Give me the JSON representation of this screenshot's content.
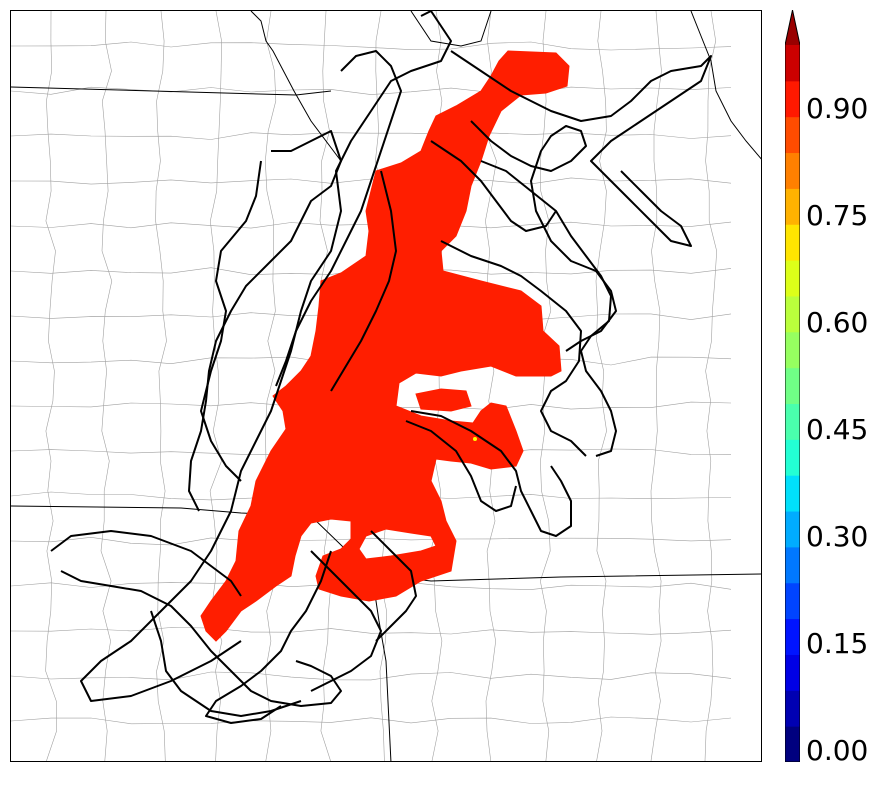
{
  "colorbar": {
    "min": 0.0,
    "max": 1.0,
    "extend": "max",
    "ticks": [
      "0.00",
      "0.15",
      "0.30",
      "0.45",
      "0.60",
      "0.75",
      "0.90"
    ],
    "tick_values": [
      0.0,
      0.15,
      0.3,
      0.45,
      0.6,
      0.75,
      0.9
    ],
    "levels": 20,
    "colormap": "jet",
    "colors": [
      "#00007f",
      "#0000b2",
      "#0000e5",
      "#0014ff",
      "#0044ff",
      "#0078ff",
      "#00acff",
      "#00e0fb",
      "#23ffd4",
      "#4affad",
      "#70ff86",
      "#96ff60",
      "#baff3c",
      "#ddff19",
      "#ffe500",
      "#ffb200",
      "#ff8000",
      "#ff4c00",
      "#ff1900",
      "#cc0000",
      "#990000"
    ]
  },
  "map": {
    "swath_color": "#ff1e00",
    "track_color": "#000000",
    "state_border_color": "#000000",
    "county_border_color": "#999999"
  }
}
